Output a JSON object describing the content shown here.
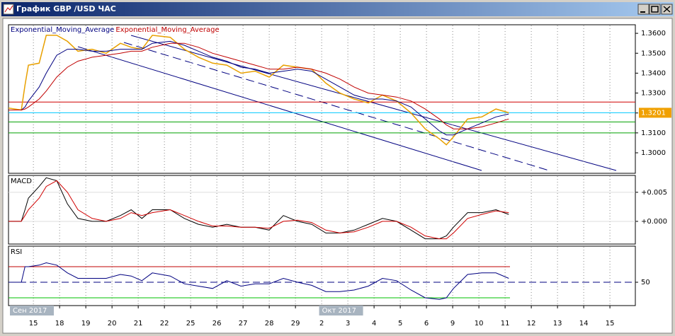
{
  "window_title": "График GBP /USD  ЧАС",
  "chart_data": [
    {
      "type": "line",
      "x": [
        -0.95,
        -0.46,
        -0.32,
        -0.19,
        0.22,
        0.49,
        0.89,
        1.3,
        1.7,
        2.24,
        2.78,
        3.32,
        3.73,
        4.14,
        4.54,
        5.22,
        5.76,
        6.3,
        6.84,
        7.38,
        7.92,
        8.46,
        9.0,
        9.54,
        10.08,
        10.62,
        11.16,
        11.7,
        12.24,
        12.78,
        13.32,
        13.86,
        14.41,
        14.95,
        15.49,
        15.76,
        16.03,
        16.57,
        17.11,
        17.65,
        18.14
      ],
      "series": [
        {
          "color": "#e8a000",
          "values": [
            1.3225,
            1.3215,
            1.334,
            1.344,
            1.345,
            1.359,
            1.359,
            1.356,
            1.351,
            1.352,
            1.35,
            1.355,
            1.353,
            1.352,
            1.359,
            1.358,
            1.352,
            1.348,
            1.345,
            1.344,
            1.34,
            1.341,
            1.338,
            1.344,
            1.343,
            1.342,
            1.335,
            1.33,
            1.327,
            1.325,
            1.329,
            1.326,
            1.32,
            1.312,
            1.307,
            1.304,
            1.308,
            1.317,
            1.318,
            1.322,
            1.3201
          ]
        },
        {
          "name": "Exponential_Moving_Average",
          "color": "#000080",
          "values": [
            1.3215,
            1.3215,
            1.323,
            1.326,
            1.333,
            1.34,
            1.349,
            1.352,
            1.352,
            1.351,
            1.351,
            1.352,
            1.352,
            1.352,
            1.355,
            1.356,
            1.354,
            1.351,
            1.348,
            1.346,
            1.343,
            1.342,
            1.34,
            1.341,
            1.342,
            1.341,
            1.337,
            1.333,
            1.329,
            1.327,
            1.327,
            1.326,
            1.323,
            1.317,
            1.311,
            1.309,
            1.309,
            1.312,
            1.315,
            1.318,
            1.3195
          ]
        },
        {
          "name": "Exponential_Moving_Average",
          "color": "#c00000",
          "values": [
            1.3215,
            1.3215,
            1.322,
            1.323,
            1.327,
            1.331,
            1.338,
            1.343,
            1.346,
            1.348,
            1.349,
            1.35,
            1.351,
            1.351,
            1.353,
            1.355,
            1.355,
            1.353,
            1.35,
            1.348,
            1.346,
            1.344,
            1.342,
            1.342,
            1.343,
            1.342,
            1.34,
            1.337,
            1.333,
            1.33,
            1.329,
            1.328,
            1.326,
            1.322,
            1.317,
            1.314,
            1.312,
            1.312,
            1.313,
            1.315,
            1.317
          ]
        }
      ],
      "xlim": [
        -0.95,
        22.97
      ],
      "xticks": [
        {
          "value": 0,
          "label": "15"
        },
        {
          "value": 1,
          "label": "18"
        },
        {
          "value": 2,
          "label": "19"
        },
        {
          "value": 3,
          "label": "20"
        },
        {
          "value": 4,
          "label": "21"
        },
        {
          "value": 5,
          "label": "22"
        },
        {
          "value": 6,
          "label": "25"
        },
        {
          "value": 7,
          "label": "26"
        },
        {
          "value": 8,
          "label": "27"
        },
        {
          "value": 9,
          "label": "28"
        },
        {
          "value": 10,
          "label": "29"
        },
        {
          "value": 11,
          "label": "2"
        },
        {
          "value": 12,
          "label": "3"
        },
        {
          "value": 13,
          "label": "4"
        },
        {
          "value": 14,
          "label": "5"
        },
        {
          "value": 15,
          "label": "6"
        },
        {
          "value": 16,
          "label": "9"
        },
        {
          "value": 17,
          "label": "10"
        },
        {
          "value": 18,
          "label": "11"
        },
        {
          "value": 19,
          "label": "12"
        },
        {
          "value": 20,
          "label": "13"
        },
        {
          "value": 21,
          "label": "14"
        },
        {
          "value": 22,
          "label": "15"
        }
      ],
      "month_labels": [
        {
          "value": -0.95,
          "label": "Сен 2017"
        },
        {
          "value": 10.85,
          "label": "Окт 2017"
        }
      ],
      "ylim": [
        1.2897,
        1.3643
      ],
      "yticks": [
        {
          "value": 1.36,
          "label": "1.3600"
        },
        {
          "value": 1.35,
          "label": "1.3500"
        },
        {
          "value": 1.34,
          "label": "1.3400"
        },
        {
          "value": 1.33,
          "label": "1.3300"
        },
        {
          "value": 1.32,
          "label": "1.3200"
        },
        {
          "value": 1.31,
          "label": "1.3100"
        },
        {
          "value": 1.3,
          "label": "1.3000"
        }
      ],
      "hlines": [
        {
          "value": 1.3255,
          "color": "#d00000"
        },
        {
          "value": 1.3201,
          "color": "#00c8ff"
        },
        {
          "value": 1.3155,
          "color": "#00a000"
        },
        {
          "value": 1.31,
          "color": "#00a000"
        }
      ],
      "last_price": 1.3201,
      "grid": true
    },
    {
      "type": "line",
      "title": "MACD",
      "x": [
        -0.95,
        -0.46,
        -0.32,
        -0.19,
        0.22,
        0.49,
        0.89,
        1.3,
        1.7,
        2.24,
        2.78,
        3.32,
        3.73,
        4.14,
        4.54,
        5.22,
        5.76,
        6.3,
        6.84,
        7.38,
        7.92,
        8.46,
        9.0,
        9.54,
        10.08,
        10.62,
        11.16,
        11.7,
        12.24,
        12.78,
        13.32,
        13.86,
        14.41,
        14.95,
        15.49,
        15.76,
        16.03,
        16.57,
        17.11,
        17.65,
        18.14
      ],
      "series": [
        {
          "color": "#000000",
          "values": [
            0,
            0,
            0.002,
            0.004,
            0.006,
            0.0075,
            0.007,
            0.003,
            0.0005,
            0,
            0,
            0.001,
            0.002,
            0.0005,
            0.002,
            0.002,
            0.0005,
            -0.0005,
            -0.001,
            -0.0005,
            -0.001,
            -0.001,
            -0.0015,
            0.001,
            0,
            -0.0005,
            -0.002,
            -0.002,
            -0.0015,
            -0.0005,
            0.0005,
            0,
            -0.0015,
            -0.003,
            -0.003,
            -0.0025,
            -0.001,
            0.0015,
            0.0015,
            0.002,
            0.0012
          ]
        },
        {
          "color": "#d00000",
          "values": [
            0,
            0,
            0.001,
            0.002,
            0.004,
            0.006,
            0.007,
            0.005,
            0.002,
            0.0005,
            0,
            0.0005,
            0.0015,
            0.001,
            0.0015,
            0.002,
            0.001,
            0,
            -0.0008,
            -0.0008,
            -0.001,
            -0.001,
            -0.0012,
            0,
            0.0002,
            -0.0002,
            -0.0015,
            -0.002,
            -0.0018,
            -0.001,
            0,
            0,
            -0.001,
            -0.0025,
            -0.003,
            -0.003,
            -0.002,
            0.0005,
            0.0012,
            0.0018,
            0.0015
          ]
        }
      ],
      "ylim": [
        -0.0039,
        0.0079
      ],
      "yticks": [
        {
          "value": 0.005,
          "label": "+0.005"
        },
        {
          "value": 0,
          "label": "+0.000"
        }
      ]
    },
    {
      "type": "line",
      "title": "RSI",
      "x": [
        -0.95,
        -0.46,
        -0.32,
        -0.19,
        0.22,
        0.49,
        0.89,
        1.3,
        1.7,
        2.24,
        2.78,
        3.32,
        3.73,
        4.14,
        4.54,
        5.22,
        5.76,
        6.3,
        6.84,
        7.38,
        7.92,
        8.46,
        9.0,
        9.54,
        10.08,
        10.62,
        11.16,
        11.7,
        12.24,
        12.78,
        13.32,
        13.86,
        14.41,
        14.95,
        15.49,
        15.76,
        16.03,
        16.57,
        17.11,
        17.65,
        18.14
      ],
      "series": [
        {
          "color": "#000080",
          "values": [
            50,
            50,
            70,
            70,
            72,
            75,
            72,
            62,
            55,
            55,
            55,
            60,
            58,
            52,
            62,
            58,
            48,
            45,
            42,
            52,
            45,
            48,
            48,
            55,
            50,
            46,
            38,
            38,
            40,
            45,
            55,
            52,
            40,
            30,
            28,
            30,
            42,
            60,
            62,
            62,
            55
          ]
        }
      ],
      "ylim": [
        20,
        96.4
      ],
      "yticks": [
        50
      ],
      "levels": [
        {
          "value": 70,
          "color": "#c00000"
        },
        {
          "value": 30,
          "color": "#00c000"
        }
      ]
    }
  ]
}
